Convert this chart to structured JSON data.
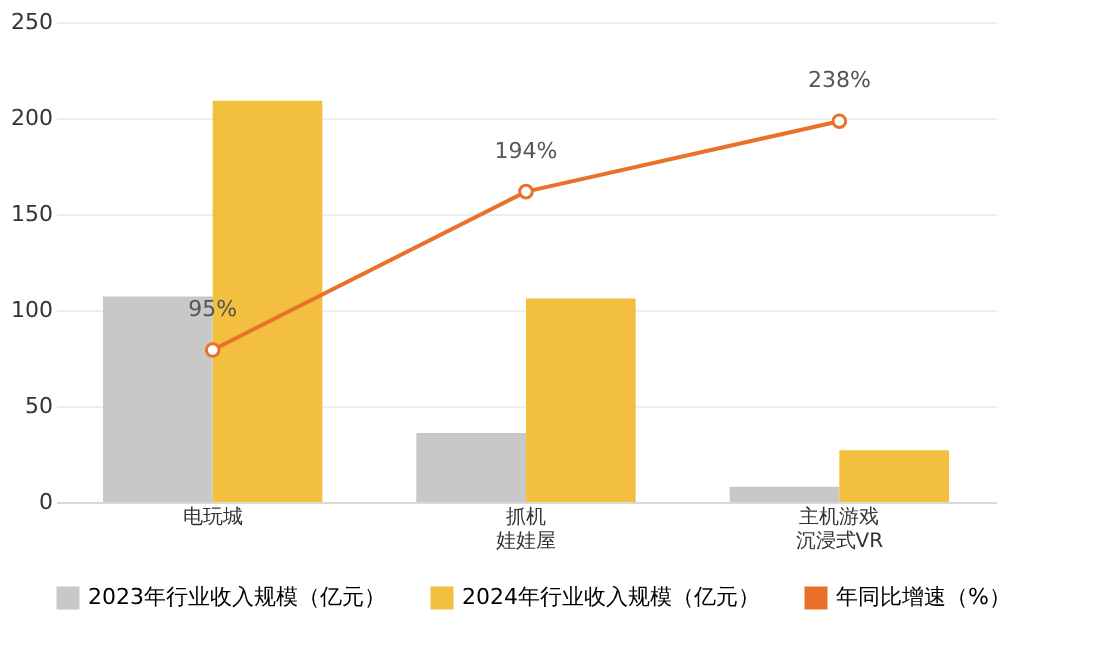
{
  "chart_data": {
    "type": "bar",
    "categories": [
      "电玩城",
      "抓机娃娃屋",
      "主机游戏沉浸式VR"
    ],
    "series": [
      {
        "name": "2023年行业收入规模（亿元）",
        "color": "#c8c8c8",
        "values": [
          107,
          36,
          8
        ]
      },
      {
        "name": "2024年行业收入规模（亿元）",
        "color": "#f2c03e",
        "values": [
          209,
          106,
          27
        ]
      },
      {
        "name": "年同比增速（%）",
        "type": "line",
        "axis": "y2",
        "color": "#e9712a",
        "marker": "circle",
        "values": [
          95,
          194,
          238
        ],
        "value_labels": [
          "95%",
          "194%",
          "238%"
        ]
      }
    ],
    "ylim": [
      0,
      250
    ],
    "yticks": [
      0,
      50,
      100,
      150,
      200,
      250
    ],
    "y2lim": [
      0,
      300
    ],
    "grid": "y",
    "legend": "bottom",
    "tick_labels": [
      "x",
      "y"
    ]
  }
}
